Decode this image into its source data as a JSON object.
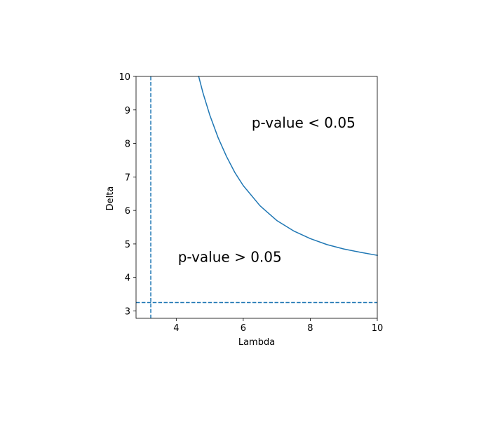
{
  "chart_data": {
    "type": "line",
    "title": "",
    "xlabel": "Lambda",
    "ylabel": "Delta",
    "xlim": [
      2.8,
      10
    ],
    "ylim": [
      2.78,
      10
    ],
    "xticks": [
      4,
      6,
      8,
      10
    ],
    "yticks": [
      3,
      4,
      5,
      6,
      7,
      8,
      9,
      10
    ],
    "grid": false,
    "legend": "none",
    "series": [
      {
        "color": "#1f77b4",
        "style": "solid",
        "x": [
          4.67,
          4.8,
          5.0,
          5.25,
          5.5,
          5.75,
          6.0,
          6.5,
          7.0,
          7.5,
          8.0,
          8.5,
          9.0,
          9.5,
          10.0
        ],
        "y": [
          10.0,
          9.5,
          8.85,
          8.17,
          7.61,
          7.13,
          6.74,
          6.14,
          5.7,
          5.39,
          5.16,
          4.98,
          4.85,
          4.75,
          4.66
        ]
      }
    ],
    "reference_lines": [
      {
        "orientation": "vertical",
        "x": 3.24,
        "color": "#1f77b4",
        "style": "dashed"
      },
      {
        "orientation": "horizontal",
        "y": 3.25,
        "color": "#1f77b4",
        "style": "dashed"
      }
    ],
    "annotations": [
      {
        "text": "p-value < 0.05",
        "x": 6.25,
        "y": 8.47
      },
      {
        "text": "p-value > 0.05",
        "x": 4.05,
        "y": 4.46
      }
    ]
  }
}
